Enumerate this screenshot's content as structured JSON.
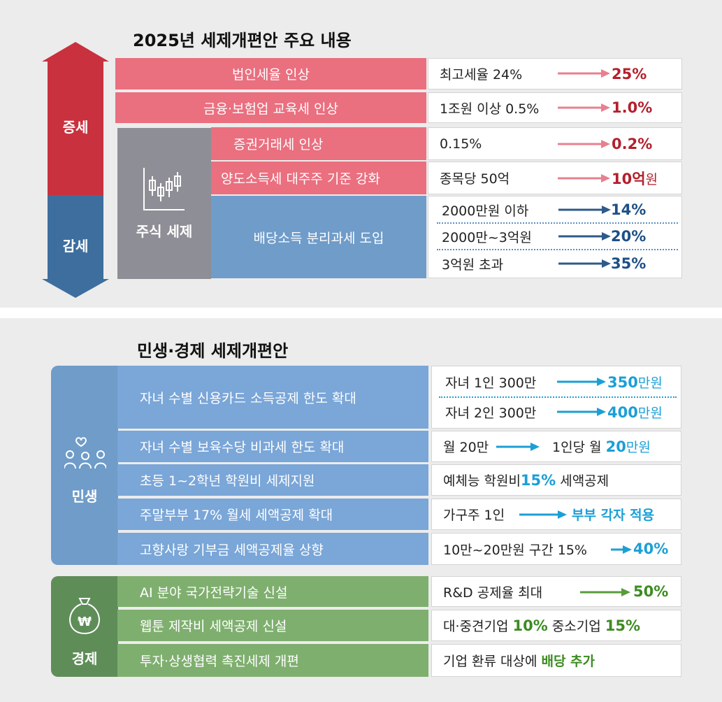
{
  "section1": {
    "title": "2025년 세제개편안 주요 내용",
    "increase_label": "증세",
    "decrease_label": "감세",
    "stock_tax_label": "주식 세제",
    "rows": [
      {
        "label": "법인세율 인상",
        "from": "최고세율 24%",
        "to": "25%"
      },
      {
        "label": "금융·보험업 교육세 인상",
        "from": "1조원 이상 0.5%",
        "to": "1.0%"
      },
      {
        "label": "증권거래세 인상",
        "from": "0.15%",
        "to": "0.2%"
      },
      {
        "label": "양도소득세 대주주 기준 강화",
        "from": "종목당 50억",
        "to_num": "10억",
        "to_unit": "원"
      }
    ],
    "dividend": {
      "label": "배당소득 분리과세 도입",
      "items": [
        {
          "from": "2000만원 이하",
          "to": "14%"
        },
        {
          "from": "2000만~3억원",
          "to": "20%"
        },
        {
          "from": "3억원 초과",
          "to": "35%"
        }
      ]
    }
  },
  "section2": {
    "title": "민생·경제 세제개편안",
    "livelihood_label": "민생",
    "economy_label": "경제",
    "livelihood": [
      {
        "label": "자녀 수별 신용카드 소득공제 한도 확대"
      },
      {
        "label": "자녀 수별 보육수당 비과세 한도 확대"
      },
      {
        "label": "초등 1~2학년 학원비 세제지원"
      },
      {
        "label": "주말부부 17% 월세 세액공제 확대"
      },
      {
        "label": "고향사랑 기부금 세액공제율 상향"
      }
    ],
    "card": [
      {
        "from": "자녀 1인 300만",
        "to_num": "350",
        "to_unit": "만원"
      },
      {
        "from": "자녀 2인 300만",
        "to_num": "400",
        "to_unit": "만원"
      }
    ],
    "childcare": {
      "from": "월 20만",
      "to_pre": "1인당 월 ",
      "to_num": "20",
      "to_unit": "만원"
    },
    "academy": {
      "pre": "예체능 학원비 ",
      "num": "15%",
      "post": " 세액공제"
    },
    "weekend": {
      "from": "가구주 1인",
      "to": "부부 각자 적용"
    },
    "hometown": {
      "from": "10만~20만원 구간 15%",
      "to": "40%"
    },
    "economy": [
      {
        "label": "AI 분야 국가전략기술 신설"
      },
      {
        "label": "웹툰 제작비 세액공제 신설"
      },
      {
        "label": "투자·상생협력 촉진세제 개편"
      }
    ],
    "ai": {
      "from": "R&D 공제율 최대",
      "to": "50%"
    },
    "webtoon": {
      "pre1": "대·중견기업 ",
      "num1": "10%",
      "pre2": " 중소기업 ",
      "num2": "15%"
    },
    "invest": {
      "pre": "기업 환류 대상에 ",
      "hl": "배당 추가"
    }
  },
  "colors": {
    "red": "#ea6f7f",
    "blue": "#6f9cc9",
    "green": "#7faf6f",
    "navy": "#1d4f86",
    "cyan": "#1b9fd6"
  }
}
